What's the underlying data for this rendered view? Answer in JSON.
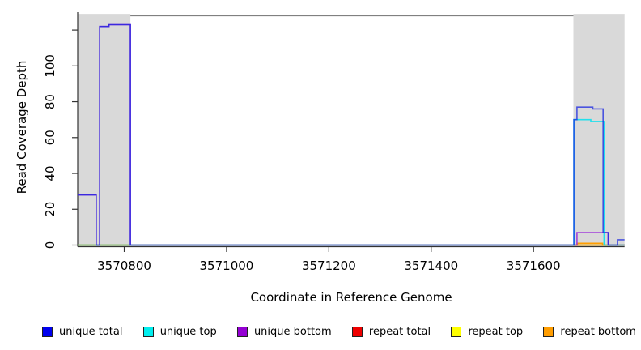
{
  "figure": {
    "y_axis_title": "Read Coverage Depth",
    "x_axis_title": "Coordinate in Reference Genome"
  },
  "chart_data": {
    "type": "line",
    "subtype": "step-coverage",
    "title": "",
    "xlabel": "Coordinate in Reference Genome",
    "ylabel": "Read Coverage Depth",
    "xlim": [
      3570709,
      3571778
    ],
    "ylim": [
      0,
      128
    ],
    "x_ticks": [
      3570800,
      3571000,
      3571200,
      3571400,
      3571600
    ],
    "x_tick_labels": [
      "3570800",
      "3571000",
      "3571200",
      "3571400",
      "3571600"
    ],
    "y_ticks": [
      0,
      20,
      40,
      60,
      80,
      100,
      120
    ],
    "y_tick_labels": [
      "0",
      "20",
      "40",
      "60",
      "80",
      "100",
      ""
    ],
    "grid": false,
    "legend_position": "bottom",
    "highlight_regions": [
      {
        "name": "left-repeat-region",
        "start": 3570709,
        "end": 3570812,
        "color": "#d9d9d9"
      },
      {
        "name": "right-repeat-region",
        "start": 3571678,
        "end": 3571778,
        "color": "#d9d9d9"
      }
    ],
    "top_boundary_line": {
      "from": 3570812,
      "to": 3571678,
      "color": "#808080"
    },
    "series": [
      {
        "name": "repeat total",
        "color": "#e80000",
        "opacity": 1,
        "steps": [
          [
            3570709,
            0
          ],
          [
            3571778,
            0
          ]
        ]
      },
      {
        "name": "repeat top",
        "color": "#ffff00",
        "opacity": 1,
        "steps": [
          [
            3570709,
            0
          ],
          [
            3571778,
            0
          ]
        ]
      },
      {
        "name": "repeat bottom",
        "color": "#ff9d00",
        "opacity": 1,
        "steps": [
          [
            3570709,
            0
          ],
          [
            3571686,
            1
          ],
          [
            3571735,
            0
          ],
          [
            3571778,
            0
          ]
        ]
      },
      {
        "name": "unique bottom",
        "color": "#9b30d9",
        "opacity": 0.9,
        "steps": [
          [
            3570709,
            28
          ],
          [
            3570745,
            0
          ],
          [
            3570752,
            122
          ],
          [
            3570770,
            123
          ],
          [
            3570812,
            0
          ],
          [
            3571685,
            7
          ],
          [
            3571746,
            0
          ],
          [
            3571778,
            0
          ]
        ]
      },
      {
        "name": "unique top",
        "color": "#00e0ee",
        "opacity": 0.85,
        "steps": [
          [
            3570709,
            0
          ],
          [
            3571679,
            70
          ],
          [
            3571712,
            69
          ],
          [
            3571738,
            0
          ],
          [
            3571778,
            0
          ]
        ]
      },
      {
        "name": "unique total",
        "color": "#1420e0",
        "opacity": 0.72,
        "steps": [
          [
            3570709,
            28
          ],
          [
            3570745,
            0
          ],
          [
            3570752,
            122
          ],
          [
            3570770,
            123
          ],
          [
            3570812,
            0
          ],
          [
            3571679,
            70
          ],
          [
            3571685,
            77
          ],
          [
            3571716,
            76
          ],
          [
            3571736,
            7
          ],
          [
            3571746,
            0
          ],
          [
            3571764,
            3
          ],
          [
            3571778,
            3
          ]
        ]
      }
    ]
  },
  "legend": {
    "items": [
      {
        "label": "unique total",
        "color": "#0000ee"
      },
      {
        "label": "unique top",
        "color": "#00eeee"
      },
      {
        "label": "unique bottom",
        "color": "#9400d3"
      },
      {
        "label": "repeat total",
        "color": "#ee0000"
      },
      {
        "label": "repeat top",
        "color": "#ffff00"
      },
      {
        "label": "repeat bottom",
        "color": "#ff9d00"
      }
    ]
  }
}
